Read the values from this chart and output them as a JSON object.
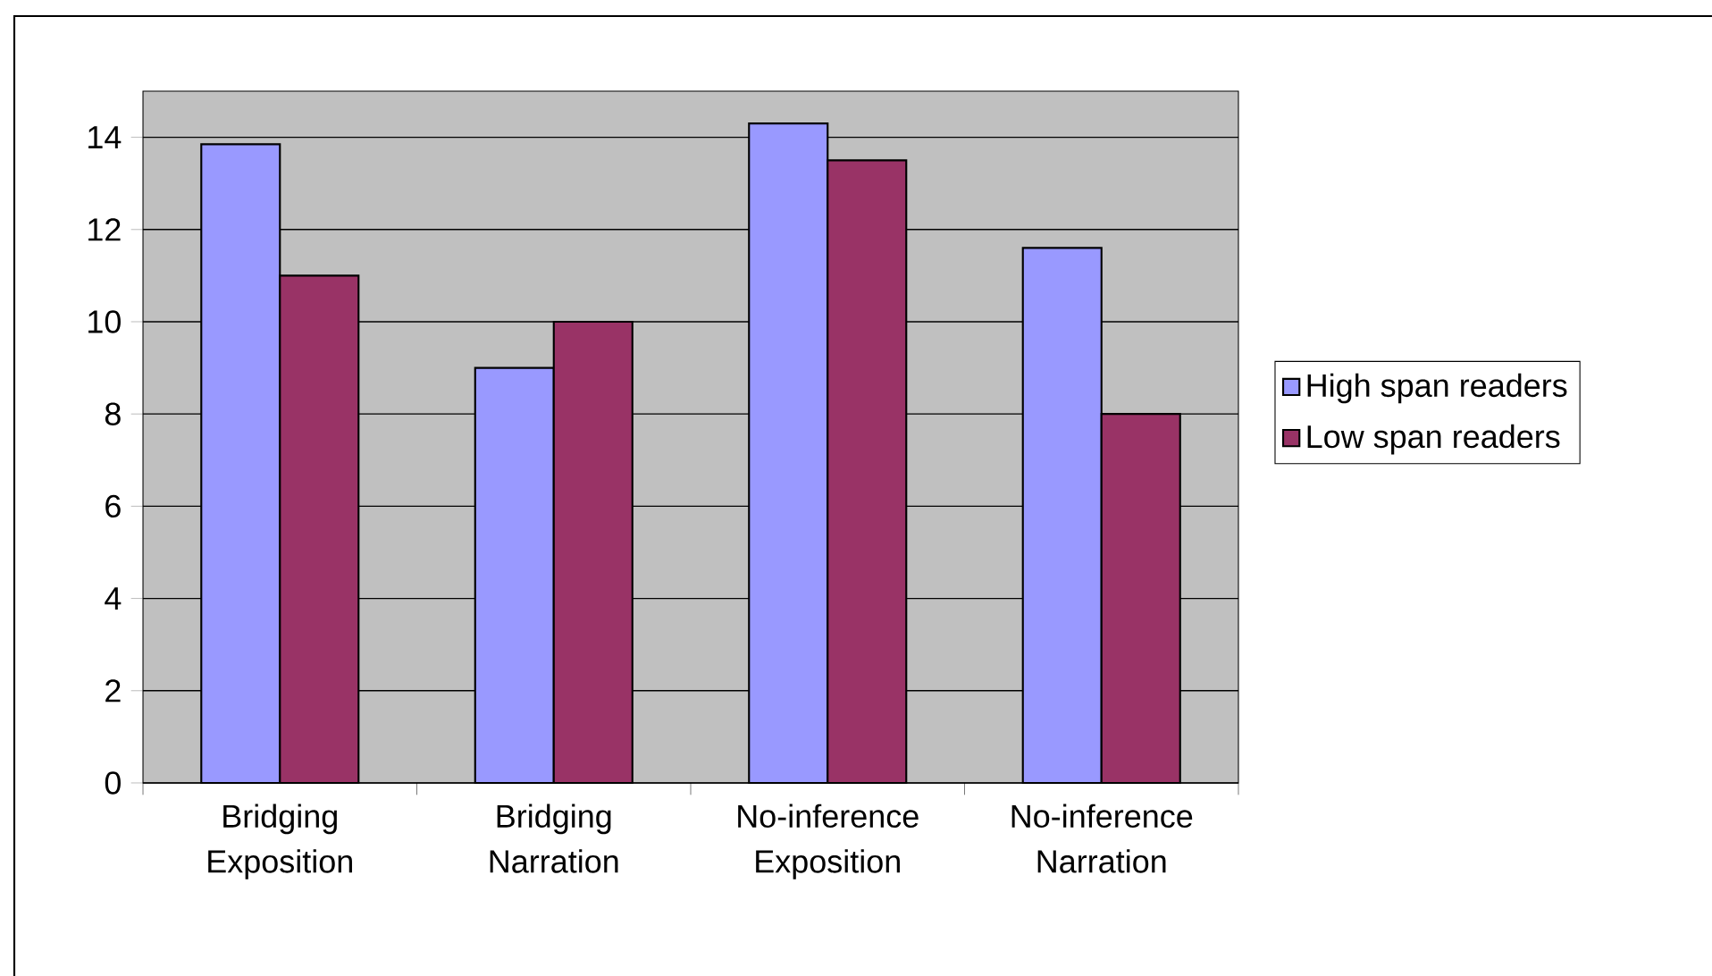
{
  "chart_data": {
    "type": "bar",
    "categories": [
      "Bridging Exposition",
      "Bridging Narration",
      "No-inference Exposition",
      "No-inference Narration"
    ],
    "series": [
      {
        "name": "High span readers",
        "color": "#9999ff",
        "values": [
          13.85,
          9,
          14.3,
          11.6
        ]
      },
      {
        "name": "Low span readers",
        "color": "#993366",
        "values": [
          11,
          10,
          13.5,
          8
        ]
      }
    ],
    "ylim": [
      0,
      15
    ],
    "yticks": [
      0,
      2,
      4,
      6,
      8,
      10,
      12,
      14
    ],
    "grid": "y",
    "legend": "right"
  }
}
